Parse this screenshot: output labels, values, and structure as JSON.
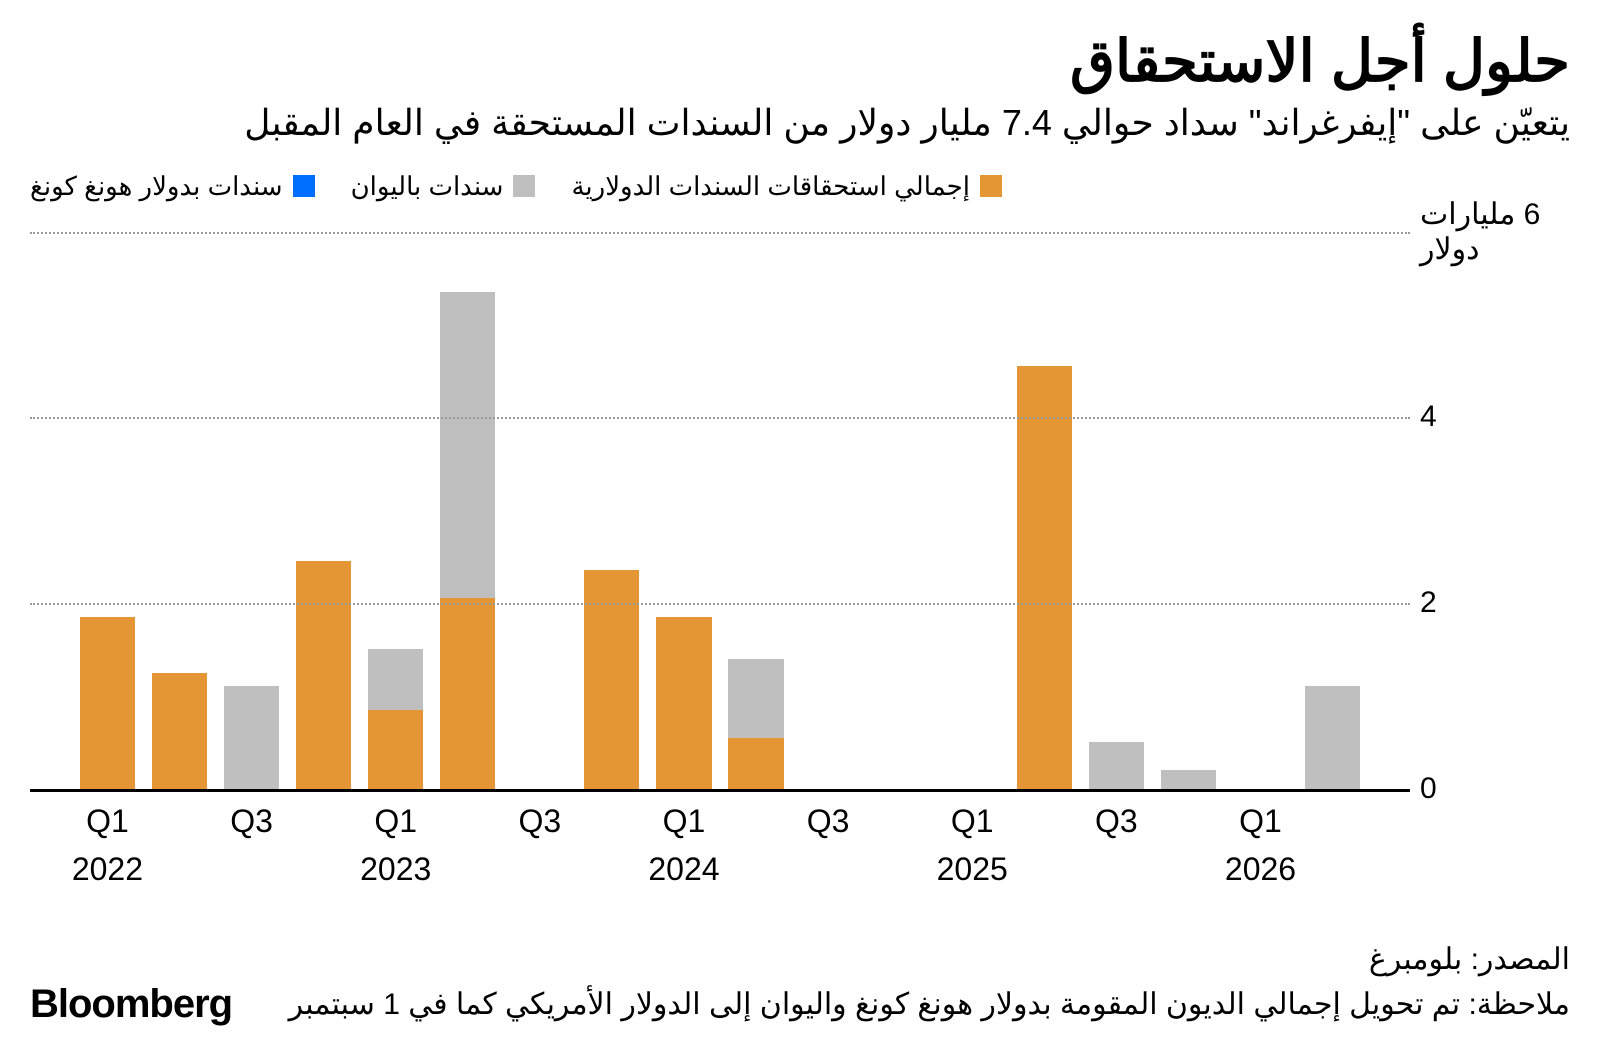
{
  "title": "حلول أجل الاستحقاق",
  "subtitle": "يتعيّن على \"إيفرغراند\" سداد حوالي 7.4 مليار دولار من السندات المستحقة في العام المقبل",
  "legend": [
    {
      "label": "سندات بدولار هونغ كونغ",
      "color": "#006eff"
    },
    {
      "label": "سندات باليوان",
      "color": "#bfbfbf"
    },
    {
      "label": "إجمالي استحقاقات السندات الدولارية",
      "color": "#e39633"
    }
  ],
  "chart": {
    "type": "stacked-bar",
    "y_max": 6,
    "y_ticks": [
      {
        "value": 6,
        "label": "6 مليارات دولار"
      },
      {
        "value": 4,
        "label": "4"
      },
      {
        "value": 2,
        "label": "2"
      },
      {
        "value": 0,
        "label": "0"
      }
    ],
    "background_color": "#ffffff",
    "grid_color": "#999999",
    "grid_style": "dotted",
    "axis_color": "#000000",
    "x_slots": 18,
    "bar_width_pct": 4.0,
    "colors": {
      "hkd": "#006eff",
      "yuan": "#bfbfbf",
      "dollar": "#e39633"
    },
    "bars": [
      {
        "slot": 0,
        "segments": [
          {
            "series": "dollar",
            "value": 1.85
          }
        ]
      },
      {
        "slot": 1,
        "segments": [
          {
            "series": "dollar",
            "value": 1.25
          }
        ]
      },
      {
        "slot": 2,
        "segments": [
          {
            "series": "yuan",
            "value": 1.1
          }
        ]
      },
      {
        "slot": 3,
        "segments": [
          {
            "series": "dollar",
            "value": 2.45
          }
        ]
      },
      {
        "slot": 4,
        "segments": [
          {
            "series": "dollar",
            "value": 0.85
          },
          {
            "series": "yuan",
            "value": 0.65
          }
        ]
      },
      {
        "slot": 5,
        "segments": [
          {
            "series": "dollar",
            "value": 2.05
          },
          {
            "series": "yuan",
            "value": 3.3
          }
        ]
      },
      {
        "slot": 7,
        "segments": [
          {
            "series": "dollar",
            "value": 2.35
          }
        ]
      },
      {
        "slot": 8,
        "segments": [
          {
            "series": "dollar",
            "value": 1.85
          }
        ]
      },
      {
        "slot": 9,
        "segments": [
          {
            "series": "dollar",
            "value": 0.55
          },
          {
            "series": "yuan",
            "value": 0.85
          }
        ]
      },
      {
        "slot": 13,
        "segments": [
          {
            "series": "dollar",
            "value": 4.55
          }
        ]
      },
      {
        "slot": 14,
        "segments": [
          {
            "series": "yuan",
            "value": 0.5
          }
        ]
      },
      {
        "slot": 15,
        "segments": [
          {
            "series": "yuan",
            "value": 0.2
          }
        ]
      },
      {
        "slot": 17,
        "segments": [
          {
            "series": "yuan",
            "value": 1.1
          }
        ]
      }
    ],
    "x_labels": [
      {
        "slot": 0,
        "q": "Q1",
        "year": "2022"
      },
      {
        "slot": 2,
        "q": "Q3"
      },
      {
        "slot": 4,
        "q": "Q1",
        "year": "2023"
      },
      {
        "slot": 6,
        "q": "Q3"
      },
      {
        "slot": 8,
        "q": "Q1",
        "year": "2024"
      },
      {
        "slot": 10,
        "q": "Q3"
      },
      {
        "slot": 12,
        "q": "Q1",
        "year": "2025"
      },
      {
        "slot": 14,
        "q": "Q3"
      },
      {
        "slot": 16,
        "q": "Q1",
        "year": "2026"
      }
    ]
  },
  "footer": {
    "source": "المصدر: بلومبرغ",
    "note": "ملاحظة: تم تحويل إجمالي الديون المقومة بدولار هونغ كونغ واليوان إلى الدولار الأمريكي كما في 1 سبتمبر",
    "logo": "Bloomberg"
  }
}
